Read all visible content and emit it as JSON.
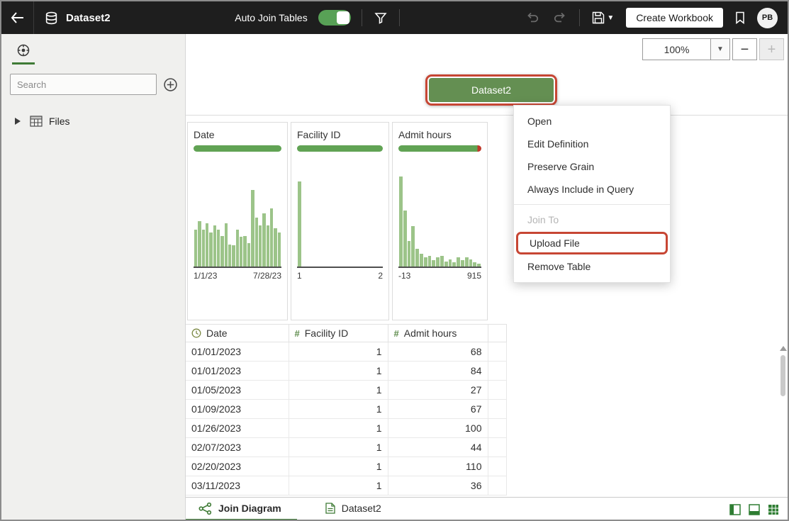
{
  "topbar": {
    "title": "Dataset2",
    "auto_join_label": "Auto Join Tables",
    "create_workbook_label": "Create Workbook",
    "avatar_initials": "PB"
  },
  "sidebar": {
    "search_placeholder": "Search",
    "files_label": "Files"
  },
  "canvas": {
    "zoom_value": "100%",
    "node_label": "Dataset2"
  },
  "context_menu": {
    "items": [
      {
        "label": "Open"
      },
      {
        "label": "Edit Definition"
      },
      {
        "label": "Preserve Grain"
      },
      {
        "label": "Always Include in Query"
      },
      {
        "type": "separator"
      },
      {
        "label": "Join To",
        "disabled": true
      },
      {
        "label": "Upload File",
        "highlighted": true
      },
      {
        "label": "Remove Table"
      }
    ]
  },
  "preview": {
    "cards": [
      {
        "title": "Date",
        "min_label": "1/1/23",
        "max_label": "7/28/23",
        "bars": [
          0.35,
          0.43,
          0.35,
          0.41,
          0.32,
          0.39,
          0.35,
          0.29,
          0.41,
          0.21,
          0.2,
          0.35,
          0.28,
          0.29,
          0.22,
          0.72,
          0.46,
          0.39,
          0.5,
          0.39,
          0.55,
          0.36,
          0.32
        ]
      },
      {
        "title": "Facility ID",
        "min_label": "1",
        "max_label": "2",
        "bars": [
          0.8,
          0,
          0,
          0,
          0,
          0,
          0,
          0,
          0,
          0,
          0,
          0,
          0,
          0,
          0,
          0,
          0,
          0,
          0,
          0
        ]
      },
      {
        "title": "Admit hours",
        "min_label": "-13",
        "max_label": "915",
        "has_red_tip": true,
        "bars": [
          0.85,
          0.53,
          0.24,
          0.38,
          0.17,
          0.12,
          0.09,
          0.1,
          0.06,
          0.09,
          0.1,
          0.05,
          0.07,
          0.04,
          0.09,
          0.06,
          0.09,
          0.07,
          0.04,
          0.03
        ]
      }
    ]
  },
  "table": {
    "columns": [
      {
        "icon": "clock-icon",
        "label": "Date"
      },
      {
        "icon": "number-icon",
        "label": "Facility ID"
      },
      {
        "icon": "number-icon",
        "label": "Admit hours"
      }
    ],
    "rows": [
      [
        "01/01/2023",
        "1",
        "68"
      ],
      [
        "01/01/2023",
        "1",
        "84"
      ],
      [
        "01/05/2023",
        "1",
        "27"
      ],
      [
        "01/09/2023",
        "1",
        "67"
      ],
      [
        "01/26/2023",
        "1",
        "100"
      ],
      [
        "02/07/2023",
        "1",
        "44"
      ],
      [
        "02/20/2023",
        "1",
        "110"
      ],
      [
        "03/11/2023",
        "1",
        "36"
      ]
    ]
  },
  "bottombar": {
    "tabs": [
      {
        "label": "Join Diagram",
        "active": true
      },
      {
        "label": "Dataset2",
        "active": false
      }
    ]
  },
  "colors": {
    "accent_green": "#3f7b36",
    "node_green": "#648f52",
    "highlight_red": "#c74634",
    "hist_green": "#9cc489"
  }
}
